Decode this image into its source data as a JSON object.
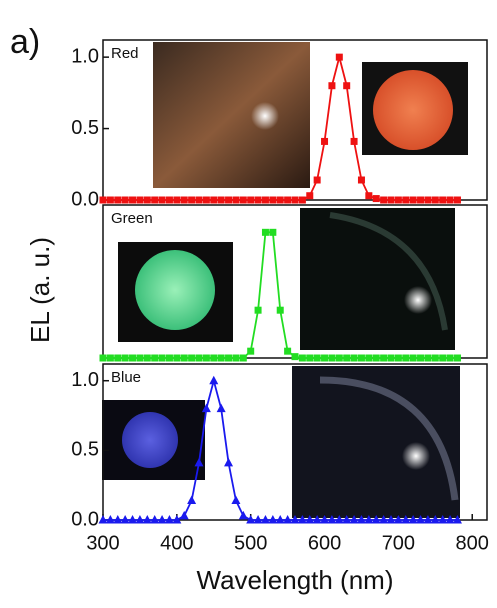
{
  "panel_label": "a)",
  "y_label": "EL (a. u.)",
  "x_label": "Wavelength (nm)",
  "chart_data": [
    {
      "type": "line",
      "label": "Red",
      "color": "#ee1111",
      "marker": "square",
      "x": [
        300,
        310,
        320,
        330,
        340,
        350,
        360,
        370,
        380,
        390,
        400,
        410,
        420,
        430,
        440,
        450,
        460,
        470,
        480,
        490,
        500,
        510,
        520,
        530,
        540,
        550,
        560,
        570,
        580,
        590,
        600,
        610,
        620,
        630,
        640,
        650,
        660,
        670,
        680,
        690,
        700,
        710,
        720,
        730,
        740,
        750,
        760,
        770,
        780
      ],
      "values": [
        0,
        0,
        0,
        0,
        0,
        0,
        0,
        0,
        0,
        0,
        0,
        0,
        0,
        0,
        0,
        0,
        0,
        0,
        0,
        0,
        0,
        0,
        0,
        0,
        0,
        0,
        0,
        0,
        0.03,
        0.14,
        0.41,
        0.8,
        1.0,
        0.8,
        0.41,
        0.14,
        0.03,
        0.01,
        0,
        0,
        0,
        0,
        0,
        0,
        0,
        0,
        0,
        0,
        0
      ],
      "xlim": [
        300,
        820
      ],
      "ylim": [
        0,
        1.12
      ],
      "yticks": [
        {
          "value": 0,
          "label": "0.0"
        },
        {
          "value": 0.5,
          "label": "0.5"
        },
        {
          "value": 1,
          "label": "1.0"
        }
      ]
    },
    {
      "type": "line",
      "label": "Green",
      "color": "#22dd22",
      "marker": "square",
      "x": [
        300,
        310,
        320,
        330,
        340,
        350,
        360,
        370,
        380,
        390,
        400,
        410,
        420,
        430,
        440,
        450,
        460,
        470,
        480,
        490,
        500,
        510,
        520,
        530,
        540,
        550,
        560,
        570,
        580,
        590,
        600,
        610,
        620,
        630,
        640,
        650,
        660,
        670,
        680,
        690,
        700,
        710,
        720,
        730,
        740,
        750,
        760,
        770,
        780
      ],
      "values": [
        0,
        0,
        0,
        0,
        0,
        0,
        0,
        0,
        0,
        0,
        0,
        0,
        0,
        0,
        0,
        0,
        0,
        0,
        0,
        0,
        0.05,
        0.35,
        0.92,
        0.92,
        0.35,
        0.05,
        0.01,
        0,
        0,
        0,
        0,
        0,
        0,
        0,
        0,
        0,
        0,
        0,
        0,
        0,
        0,
        0,
        0,
        0,
        0,
        0,
        0,
        0,
        0
      ],
      "xlim": [
        300,
        820
      ],
      "ylim": [
        0,
        1.12
      ]
    },
    {
      "type": "line",
      "label": "Blue",
      "color": "#1a1aee",
      "marker": "triangle",
      "x": [
        300,
        310,
        320,
        330,
        340,
        350,
        360,
        370,
        380,
        390,
        400,
        410,
        420,
        430,
        440,
        450,
        460,
        470,
        480,
        490,
        500,
        510,
        520,
        530,
        540,
        550,
        560,
        570,
        580,
        590,
        600,
        610,
        620,
        630,
        640,
        650,
        660,
        670,
        680,
        690,
        700,
        710,
        720,
        730,
        740,
        750,
        760,
        770,
        780
      ],
      "values": [
        0,
        0,
        0,
        0,
        0,
        0,
        0,
        0,
        0,
        0,
        0,
        0.03,
        0.14,
        0.41,
        0.8,
        1.0,
        0.8,
        0.41,
        0.14,
        0.03,
        0,
        0,
        0,
        0,
        0,
        0,
        0,
        0,
        0,
        0,
        0,
        0,
        0,
        0,
        0,
        0,
        0,
        0,
        0,
        0,
        0,
        0,
        0,
        0,
        0,
        0,
        0,
        0,
        0
      ],
      "xlim": [
        300,
        820
      ],
      "ylim": [
        0,
        1.12
      ],
      "yticks": [
        {
          "value": 0,
          "label": "0.0"
        },
        {
          "value": 0.5,
          "label": "0.5"
        },
        {
          "value": 1,
          "label": "1.0"
        }
      ],
      "xticks": [
        300,
        400,
        500,
        600,
        700,
        800
      ]
    }
  ]
}
